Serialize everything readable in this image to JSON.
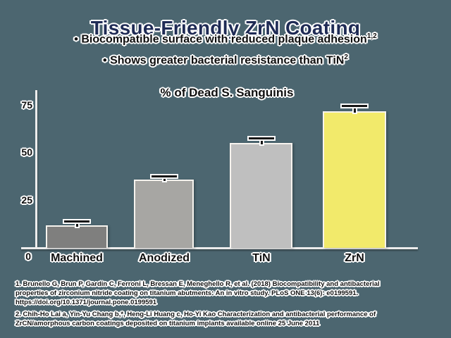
{
  "slide": {
    "title": "Tissue-Friendly ZrN Coating",
    "bullets": [
      {
        "marker": "•",
        "text": "Biocompatible surface with reduced plaque adhesion",
        "sup": "1,2"
      },
      {
        "marker": "•",
        "text": "Shows greater bacterial resistance than TiN",
        "sup": "2"
      }
    ]
  },
  "chart_data": {
    "type": "bar",
    "title": "% of Dead S. Sanguinis",
    "categories": [
      "Machined",
      "Anodized",
      "TiN",
      "ZrN"
    ],
    "values": [
      12,
      36,
      55,
      72
    ],
    "errors": [
      2.5,
      2,
      3,
      3
    ],
    "bar_colors": [
      "#7f7f7e",
      "#a7a6a3",
      "#bfbfbf",
      "#f2ea6b"
    ],
    "yticks": [
      0,
      25,
      50,
      75
    ],
    "ylim": [
      0,
      82
    ],
    "xlabel": "",
    "ylabel": "",
    "grid": false,
    "legend": "none"
  },
  "footnotes": [
    "1. Brunello G, Brun P, Gardin C, Ferroni L, Bressan E, Meneghello R, et al. (2018) Biocompatibility and antibacterial\nproperties of zirconium nitride coating on titanium abutments: An in vitro study. PLoS ONE 13(6): e0199591.\nhttps://doi.org/10.1371/journal.pone.0199591",
    "2. Chih-Ho Lai a, Yin-Yu Chang b,*, Heng-Li Huang c, Ho-Yi Kao Characterization and antibacterial performance of\nZrCN/amorphous carbon coatings deposited on titanium implants available online 25 June 2011"
  ],
  "colors": {
    "background": "#4c6670",
    "title_navy": "#1f2b55",
    "text_black": "#0e0e0e",
    "halo_white": "#ffffff",
    "axis_light": "#ececec",
    "bar_machined": "#7f7f7e",
    "bar_anodized": "#a7a6a3",
    "bar_tin": "#bfbfbf",
    "bar_zrn_yellow": "#f2ea6b"
  }
}
